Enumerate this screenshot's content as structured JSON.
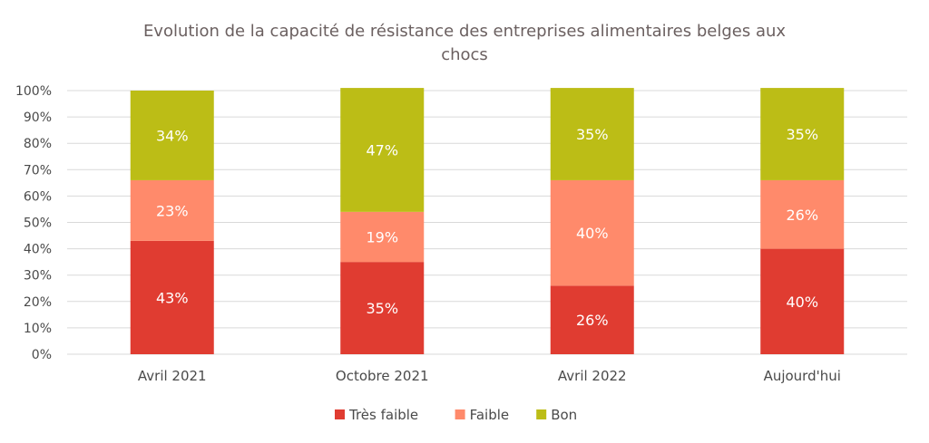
{
  "chart_data": {
    "type": "bar",
    "stacked": true,
    "title_line1": "Evolution de la capacité de résistance des entreprises alimentaires belges aux",
    "title_line2": "chocs",
    "categories": [
      "Avril 2021",
      "Octobre 2021",
      "Avril 2022",
      "Aujourd'hui"
    ],
    "series": [
      {
        "name": "Très faible",
        "values": [
          43,
          35,
          26,
          40
        ],
        "color": "#e03c31"
      },
      {
        "name": "Faible",
        "values": [
          23,
          19,
          40,
          26
        ],
        "color": "#ff8a6b"
      },
      {
        "name": "Bon",
        "values": [
          34,
          47,
          35,
          35
        ],
        "color": "#bcbd16"
      }
    ],
    "ylim": [
      0,
      100
    ],
    "yticks": [
      "0%",
      "10%",
      "20%",
      "30%",
      "40%",
      "50%",
      "60%",
      "70%",
      "80%",
      "90%",
      "100%"
    ],
    "unit": "%",
    "grid": true,
    "legend_position": "bottom"
  }
}
